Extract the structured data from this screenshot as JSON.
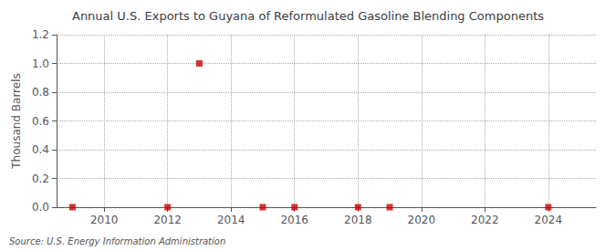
{
  "chart_data": {
    "type": "scatter",
    "title": "Annual U.S. Exports to Guyana of Reformulated Gasoline Blending Components",
    "ylabel": "Thousand Barrels",
    "source": "Source: U.S. Energy Information Administration",
    "x": [
      2009,
      2012,
      2013,
      2015,
      2016,
      2018,
      2019,
      2024
    ],
    "values": [
      0.0,
      0.0,
      1.0,
      0.0,
      0.0,
      0.0,
      0.0,
      0.0
    ],
    "color": "#cc0000",
    "marker": "square",
    "xlim": [
      2008.5,
      2025.5
    ],
    "xticks": [
      2010,
      2012,
      2014,
      2016,
      2018,
      2020,
      2022,
      2024
    ],
    "ylim": [
      0.0,
      1.2
    ],
    "yticks": [
      {
        "value": 0.0,
        "label": "0.0"
      },
      0.2,
      0.4,
      0.6,
      0.8,
      {
        "value": 1.0,
        "label": "1.0"
      },
      1.2
    ],
    "grid": true
  }
}
